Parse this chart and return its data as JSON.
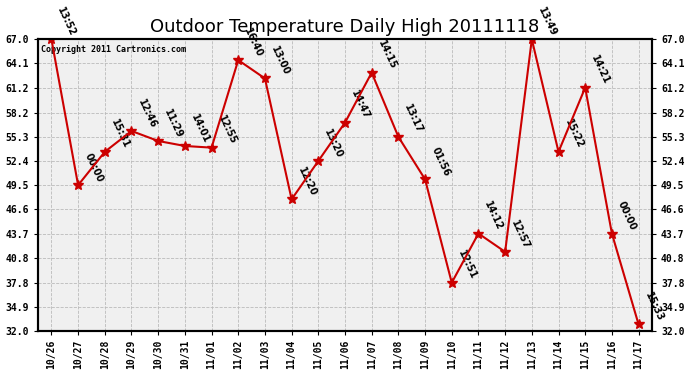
{
  "title": "Outdoor Temperature Daily High 20111118",
  "copyright": "Copyright 2011 Cartronics.com",
  "dates": [
    "10/26",
    "10/27",
    "10/28",
    "10/29",
    "10/30",
    "10/31",
    "11/01",
    "11/02",
    "11/03",
    "11/04",
    "11/05",
    "11/06",
    "11/07",
    "11/08",
    "11/09",
    "11/10",
    "11/11",
    "11/12",
    "11/13",
    "11/14",
    "11/15",
    "11/16",
    "11/17"
  ],
  "yvals": [
    67.0,
    49.5,
    53.5,
    56.0,
    54.8,
    54.2,
    54.0,
    64.5,
    62.3,
    47.8,
    52.4,
    57.0,
    63.0,
    55.3,
    50.2,
    37.8,
    43.7,
    41.5,
    67.0,
    53.5,
    61.2,
    43.7,
    32.8
  ],
  "ptlabels": [
    "13:52",
    "00:00",
    "15:31",
    "12:46",
    "11:29",
    "14:01",
    "12:55",
    "16:40",
    "13:00",
    "12:20",
    "13:20",
    "14:47",
    "14:15",
    "13:17",
    "01:56",
    "12:51",
    "14:12",
    "12:57",
    "13:49",
    "15:22",
    "14:21",
    "00:00",
    "15:33"
  ],
  "ylim_min": 32.0,
  "ylim_max": 67.0,
  "yticks": [
    32.0,
    34.9,
    37.8,
    40.8,
    43.7,
    46.6,
    49.5,
    52.4,
    55.3,
    58.2,
    61.2,
    64.1,
    67.0
  ],
  "line_color": "#cc0000",
  "marker_color": "#cc0000",
  "bg_color": "#ffffff",
  "plot_bg_color": "#f0f0f0",
  "grid_color": "#bbbbbb",
  "title_fontsize": 13,
  "tick_fontsize": 7,
  "annot_fontsize": 7
}
